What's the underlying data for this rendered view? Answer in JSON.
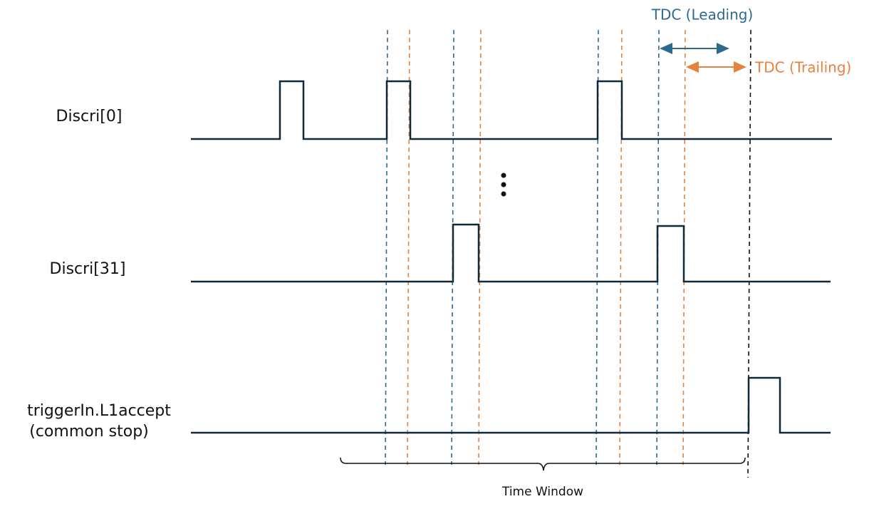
{
  "annotations": {
    "leading": "TDC (Leading)",
    "trailing": "TDC (Trailing)",
    "window": "Time Window"
  },
  "signals": [
    {
      "label": "Discri[0]"
    },
    {
      "label": "Discri[31]"
    },
    {
      "label": "triggerIn.L1accept",
      "sublabel": "(common stop)"
    }
  ]
}
